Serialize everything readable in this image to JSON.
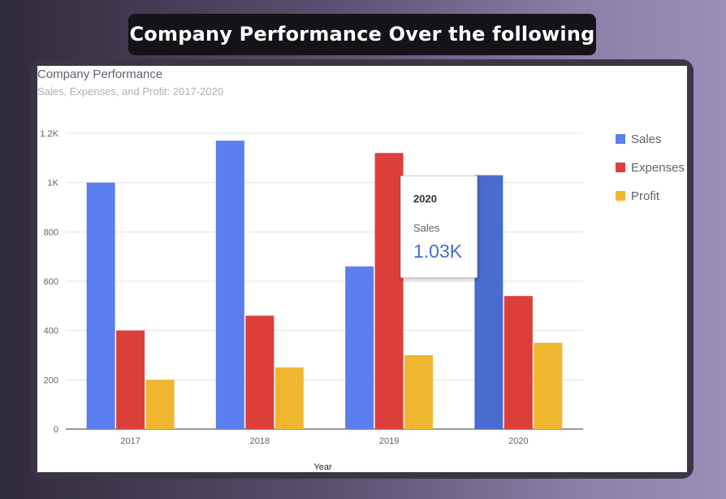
{
  "header": {
    "title": "Company Performance Over the following Year's"
  },
  "chart_data": {
    "type": "bar",
    "title": "Company Performance",
    "subtitle": "Sales, Expenses, and Profit: 2017-2020",
    "xlabel": "Year",
    "ylabel": "",
    "categories": [
      "2017",
      "2018",
      "2019",
      "2020"
    ],
    "series": [
      {
        "name": "Sales",
        "color": "#5b7fef",
        "values": [
          1000,
          1170,
          660,
          1030
        ]
      },
      {
        "name": "Expenses",
        "color": "#dc3f3a",
        "values": [
          400,
          460,
          1120,
          540
        ]
      },
      {
        "name": "Profit",
        "color": "#f0b62f",
        "values": [
          200,
          250,
          300,
          350
        ]
      }
    ],
    "ylim": [
      0,
      1200
    ],
    "yticks": [
      0,
      200,
      400,
      600,
      800,
      1000,
      1200
    ],
    "ytick_labels": [
      "0",
      "200",
      "400",
      "600",
      "800",
      "1K",
      "1.2K"
    ],
    "grid": true,
    "legend_position": "right",
    "highlight": {
      "series": "Sales",
      "category": "2020",
      "color": "#4a6bcf"
    }
  },
  "tooltip": {
    "category": "2020",
    "series_label": "Sales",
    "value": "1.03K"
  }
}
